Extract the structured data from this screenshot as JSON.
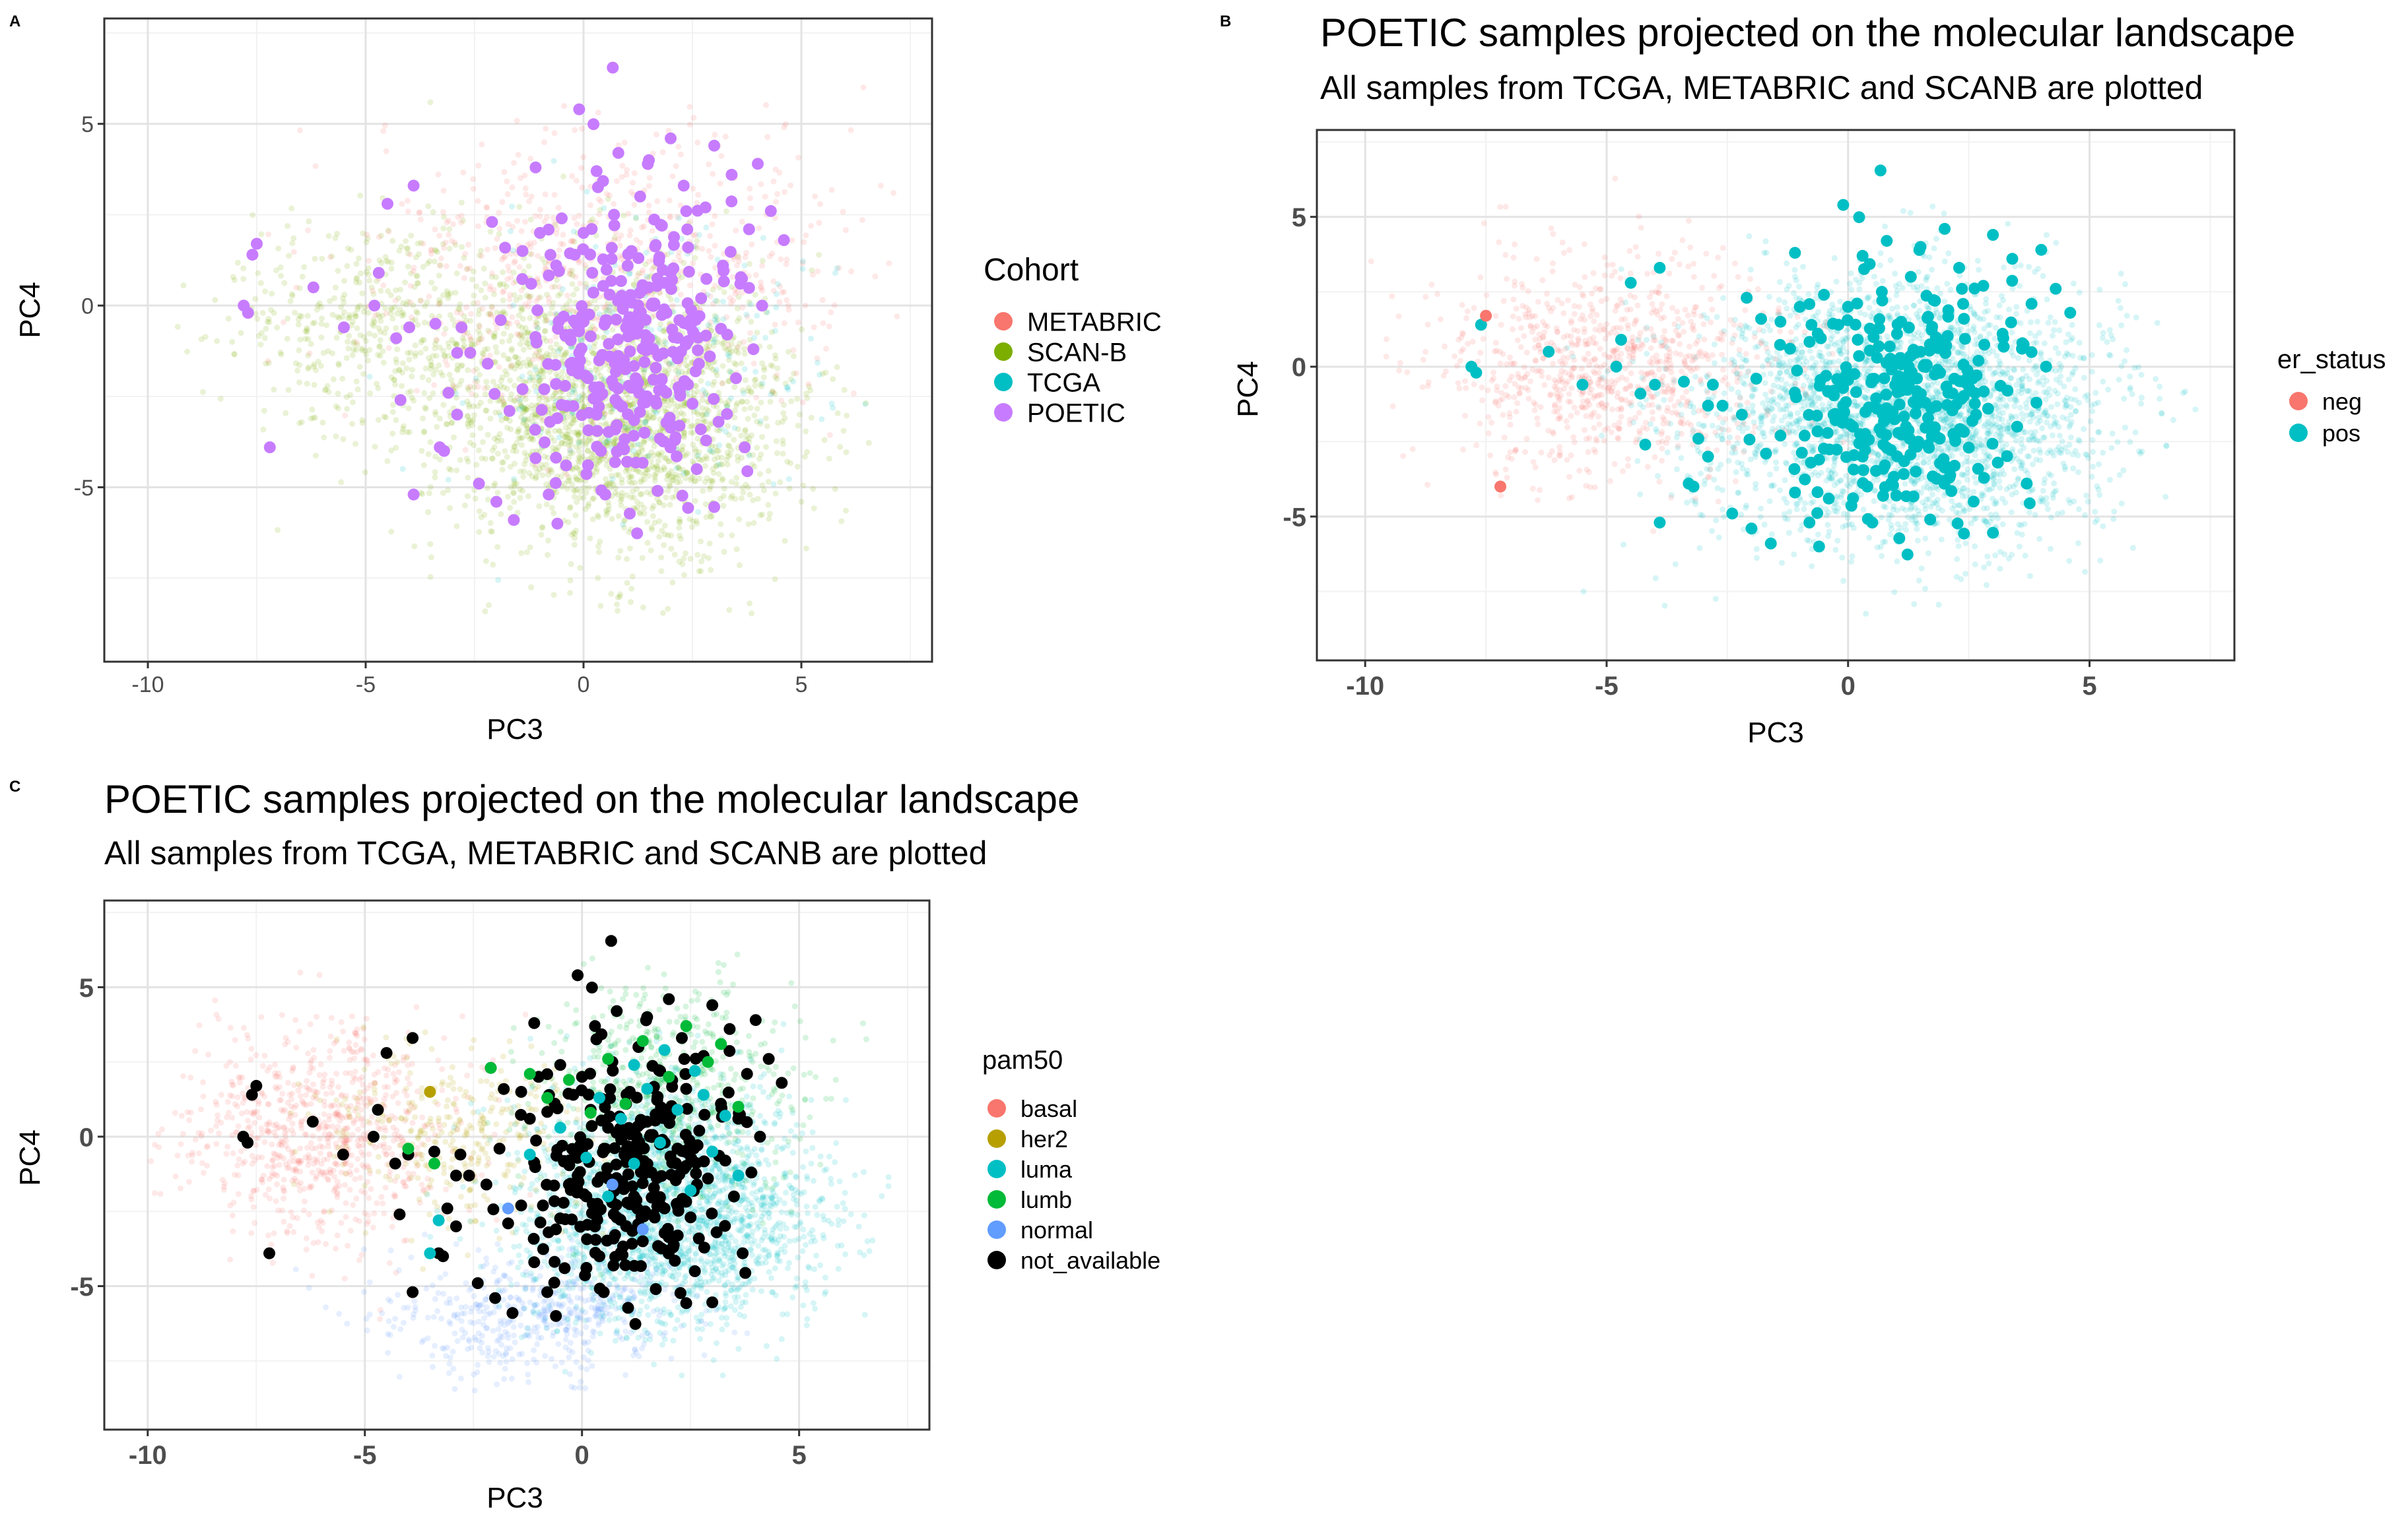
{
  "figure": {
    "panels": [
      "A",
      "B",
      "C"
    ]
  },
  "chart_data": [
    {
      "panel": "A",
      "type": "scatter",
      "title": "",
      "subtitle": "",
      "xlabel": "PC3",
      "ylabel": "PC4",
      "xlim": [
        -11,
        8
      ],
      "ylim": [
        -9.8,
        7.9
      ],
      "xticks": [
        -10,
        -5,
        0,
        5
      ],
      "yticks": [
        -5,
        0,
        5
      ],
      "grid": true,
      "legend": {
        "title": "Cohort",
        "position": "right",
        "entries": [
          {
            "name": "METABRIC",
            "color": "#F8766D"
          },
          {
            "name": "SCAN-B",
            "color": "#7CAE00"
          },
          {
            "name": "TCGA",
            "color": "#00BFC4"
          },
          {
            "name": "POETIC",
            "color": "#C77CFF"
          }
        ]
      },
      "background": [
        {
          "name": "SCAN-B",
          "color": "#7CAE00",
          "n": 2200,
          "cx": 0.8,
          "cy": -3.0,
          "sx": 2.6,
          "sy": 2.6
        },
        {
          "name": "SCAN-B",
          "color": "#7CAE00",
          "n": 500,
          "cx": -4.5,
          "cy": -0.5,
          "sx": 2.4,
          "sy": 2.2
        },
        {
          "name": "METABRIC",
          "color": "#F8766D",
          "n": 700,
          "cx": 0.5,
          "cy": 1.0,
          "sx": 3.6,
          "sy": 2.5
        },
        {
          "name": "TCGA",
          "color": "#00BFC4",
          "n": 250,
          "cx": 1.5,
          "cy": -1.5,
          "sx": 2.5,
          "sy": 2.4
        }
      ],
      "foreground": {
        "name": "POETIC",
        "color": "#C77CFF",
        "points": [
          [
            -7.5,
            1.7
          ],
          [
            -7.6,
            1.4
          ],
          [
            -7.8,
            0
          ],
          [
            -7.7,
            -0.2
          ],
          [
            -7.2,
            -3.9
          ],
          [
            -6.2,
            0.5
          ],
          [
            -5.5,
            -0.6
          ],
          [
            -4.8,
            0
          ],
          [
            -4.7,
            0.9
          ],
          [
            -4.5,
            2.8
          ],
          [
            -4.3,
            -0.9
          ],
          [
            -4.0,
            -0.6
          ],
          [
            -4.2,
            -2.6
          ],
          [
            -3.9,
            3.3
          ],
          [
            -3.9,
            -5.2
          ],
          [
            -3.4,
            -0.5
          ],
          [
            -3.3,
            -3.9
          ],
          [
            -3.2,
            -4.0
          ],
          [
            -3.1,
            -2.4
          ],
          [
            -2.9,
            -1.3
          ],
          [
            -2.8,
            -0.6
          ],
          [
            -2.9,
            -3.0
          ],
          [
            -2.6,
            -1.3
          ],
          [
            -2.4,
            -4.9
          ],
          [
            -2.2,
            -1.6
          ],
          [
            -2.1,
            2.3
          ],
          [
            -2.0,
            -5.4
          ],
          [
            -1.9,
            -0.4
          ],
          [
            -1.7,
            -2.9
          ],
          [
            -1.6,
            -5.9
          ],
          [
            -1.4,
            1.5
          ],
          [
            -1.4,
            -2.3
          ],
          [
            -1.2,
            0.6
          ],
          [
            -1.1,
            3.8
          ],
          [
            -1.1,
            -4.2
          ],
          [
            -1.0,
            2.0
          ],
          [
            -0.9,
            -2.3
          ],
          [
            -0.8,
            -5.2
          ],
          [
            -0.6,
            -3.1
          ],
          [
            -0.6,
            -6.0
          ],
          [
            -0.5,
            2.4
          ],
          [
            -0.4,
            -4.4
          ],
          [
            -0.3,
            -1.6
          ],
          [
            -0.2,
            1.4
          ],
          [
            -0.1,
            -1.3
          ],
          [
            -0.1,
            5.4
          ],
          [
            0.0,
            2.0
          ],
          [
            0.1,
            -2.0
          ],
          [
            0.2,
            0.9
          ],
          [
            0.3,
            -3.0
          ],
          [
            0.3,
            3.7
          ],
          [
            0.4,
            -4.0
          ],
          [
            0.5,
            -5.2
          ],
          [
            0.6,
            0.3
          ],
          [
            0.6,
            -1.4
          ],
          [
            0.7,
            2.5
          ],
          [
            0.8,
            -2.7
          ],
          [
            0.8,
            4.2
          ],
          [
            0.9,
            0.1
          ],
          [
            1.0,
            -4.3
          ],
          [
            1.1,
            -0.8
          ],
          [
            1.1,
            1.5
          ],
          [
            1.2,
            -2.0
          ],
          [
            1.3,
            3.0
          ],
          [
            1.4,
            -3.5
          ],
          [
            1.5,
            0.5
          ],
          [
            1.5,
            4.0
          ],
          [
            1.6,
            -1.2
          ],
          [
            1.7,
            -5.1
          ],
          [
            1.8,
            2.2
          ],
          [
            1.9,
            -2.4
          ],
          [
            2.0,
            0.9
          ],
          [
            2.0,
            4.6
          ],
          [
            2.1,
            -3.7
          ],
          [
            2.2,
            -0.4
          ],
          [
            2.3,
            3.3
          ],
          [
            2.4,
            1.6
          ],
          [
            2.5,
            -2.7
          ],
          [
            2.6,
            -4.5
          ],
          [
            2.7,
            0.2
          ],
          [
            2.8,
            2.7
          ],
          [
            2.9,
            -1.4
          ],
          [
            3.0,
            4.4
          ],
          [
            3.1,
            -3.2
          ],
          [
            3.2,
            1.1
          ],
          [
            3.3,
            -0.8
          ],
          [
            3.4,
            3.6
          ],
          [
            3.5,
            -2.0
          ],
          [
            3.6,
            0.6
          ],
          [
            3.7,
            -3.9
          ],
          [
            3.8,
            2.1
          ],
          [
            3.9,
            -1.2
          ],
          [
            4.0,
            3.9
          ],
          [
            4.1,
            0.0
          ],
          [
            4.3,
            2.6
          ],
          [
            4.6,
            1.8
          ]
        ]
      }
    },
    {
      "panel": "B",
      "type": "scatter",
      "title": "POETIC samples projected on the molecular landscape",
      "subtitle": "All samples from TCGA, METABRIC and SCANB are plotted",
      "xlabel": "PC3",
      "ylabel": "PC4",
      "xlim": [
        -11,
        8
      ],
      "ylim": [
        -9.8,
        7.9
      ],
      "xticks": [
        -10,
        -5,
        0,
        5
      ],
      "yticks": [
        -5,
        0,
        5
      ],
      "grid": true,
      "legend": {
        "title": "er_status",
        "position": "right",
        "entries": [
          {
            "name": "neg",
            "color": "#F8766D"
          },
          {
            "name": "pos",
            "color": "#00BFC4"
          }
        ]
      },
      "background": [
        {
          "name": "pos",
          "color": "#00BFC4",
          "n": 2800,
          "cx": 1.2,
          "cy": -1.5,
          "sx": 2.8,
          "sy": 2.9
        },
        {
          "name": "neg",
          "color": "#F8766D",
          "n": 900,
          "cx": -5.0,
          "cy": 0.0,
          "sx": 2.4,
          "sy": 2.4
        }
      ],
      "foreground": {
        "neg": [
          [
            -7.5,
            1.7
          ],
          [
            -7.2,
            -4.0
          ]
        ],
        "pos_color": "#00BFC4"
      }
    },
    {
      "panel": "C",
      "type": "scatter",
      "title": "POETIC samples projected on the molecular landscape",
      "subtitle": "All samples from TCGA, METABRIC and SCANB are plotted",
      "xlabel": "PC3",
      "ylabel": "PC4",
      "xlim": [
        -11,
        8
      ],
      "ylim": [
        -9.8,
        7.9
      ],
      "xticks": [
        -10,
        -5,
        0,
        5
      ],
      "yticks": [
        -5,
        0,
        5
      ],
      "grid": true,
      "legend": {
        "title": "pam50",
        "position": "right",
        "entries": [
          {
            "name": "basal",
            "color": "#F8766D"
          },
          {
            "name": "her2",
            "color": "#B79F00"
          },
          {
            "name": "luma",
            "color": "#00BFC4"
          },
          {
            "name": "lumb",
            "color": "#00BA38"
          },
          {
            "name": "normal",
            "color": "#619CFF"
          },
          {
            "name": "not_available",
            "color": "#000000"
          }
        ]
      },
      "background": [
        {
          "name": "luma",
          "color": "#00BFC4",
          "n": 2200,
          "cx": 2.0,
          "cy": -2.5,
          "sx": 2.3,
          "sy": 2.6
        },
        {
          "name": "lumb",
          "color": "#00BA38",
          "n": 600,
          "cx": 2.0,
          "cy": 1.5,
          "sx": 2.0,
          "sy": 2.4
        },
        {
          "name": "basal",
          "color": "#F8766D",
          "n": 800,
          "cx": -6.0,
          "cy": 0.0,
          "sx": 2.2,
          "sy": 2.3
        },
        {
          "name": "her2",
          "color": "#B79F00",
          "n": 350,
          "cx": -3.0,
          "cy": 0.0,
          "sx": 2.0,
          "sy": 2.0
        },
        {
          "name": "normal",
          "color": "#619CFF",
          "n": 500,
          "cx": -1.0,
          "cy": -6.0,
          "sx": 2.3,
          "sy": 1.4
        }
      ],
      "foreground": {
        "her2": [
          [
            -3.5,
            1.5
          ]
        ],
        "lumb": [
          [
            -4.0,
            -0.4
          ],
          [
            -3.4,
            -0.9
          ],
          [
            -2.1,
            2.3
          ],
          [
            -1.2,
            2.1
          ],
          [
            -0.8,
            1.3
          ],
          [
            -0.3,
            1.9
          ],
          [
            0.2,
            0.8
          ],
          [
            0.6,
            2.6
          ],
          [
            1.0,
            1.1
          ],
          [
            1.4,
            3.2
          ],
          [
            2.0,
            2.0
          ],
          [
            2.4,
            3.7
          ],
          [
            2.9,
            2.5
          ],
          [
            3.2,
            3.1
          ],
          [
            3.6,
            1.0
          ]
        ],
        "luma": [
          [
            -3.3,
            -2.8
          ],
          [
            -3.5,
            -3.9
          ],
          [
            -1.2,
            -0.6
          ],
          [
            -0.5,
            0.3
          ],
          [
            0.1,
            -0.7
          ],
          [
            0.4,
            1.3
          ],
          [
            0.9,
            0.6
          ],
          [
            1.2,
            -0.9
          ],
          [
            1.5,
            1.6
          ],
          [
            1.8,
            -0.2
          ],
          [
            2.2,
            0.9
          ],
          [
            2.5,
            -1.8
          ],
          [
            2.8,
            1.4
          ],
          [
            3.0,
            -0.5
          ],
          [
            3.3,
            0.7
          ],
          [
            3.6,
            -1.3
          ],
          [
            1.9,
            2.9
          ],
          [
            1.2,
            2.4
          ],
          [
            0.6,
            -2.0
          ],
          [
            2.6,
            2.2
          ]
        ],
        "normal": [
          [
            -1.7,
            -2.4
          ],
          [
            1.4,
            -3.1
          ],
          [
            0.7,
            -1.6
          ]
        ],
        "not_available_color": "#000000"
      }
    }
  ]
}
